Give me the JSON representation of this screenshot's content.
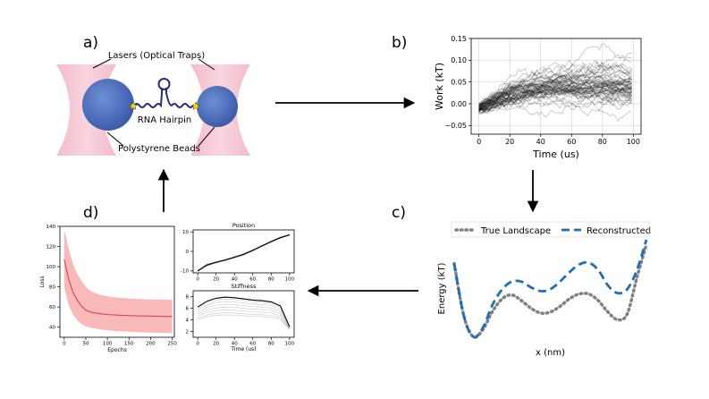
{
  "panels": {
    "a": {
      "letter": "a)",
      "lasers_label": "Lasers (Optical Traps)",
      "hairpin_label": "RNA Hairpin",
      "beads_label": "Polystyrene Beads"
    },
    "b": {
      "letter": "b)"
    },
    "c": {
      "letter": "c)"
    },
    "d": {
      "letter": "d)"
    }
  },
  "chart_data": [
    {
      "id": "work",
      "type": "line",
      "xlabel": "Time (us)",
      "ylabel": "Work (kT)",
      "xlim": [
        -5,
        105
      ],
      "ylim": [
        -0.07,
        0.15
      ],
      "xticks": [
        0,
        20,
        40,
        60,
        80,
        100
      ],
      "yticks": [
        -0.05,
        0.0,
        0.05,
        0.1,
        0.15
      ],
      "ytick_labels": [
        "−0.05",
        "0.00",
        "0.05",
        "0.10",
        "0.15"
      ],
      "grid": true,
      "n_traces": 60,
      "series": [
        {
          "x": [
            0,
            20,
            40,
            60,
            80,
            100
          ],
          "y": [
            -0.01,
            0.02,
            0.035,
            0.04,
            0.045,
            0.04
          ]
        }
      ],
      "color": "#000000"
    },
    {
      "id": "landscape",
      "type": "line",
      "xlabel": "x (nm)",
      "ylabel": "Energy (kT)",
      "legend_position": "top",
      "series": [
        {
          "name": "True Landscape",
          "style": "dotted",
          "color": "#808080",
          "x": [
            0,
            0.05,
            0.1,
            0.15,
            0.2,
            0.25,
            0.3,
            0.35,
            0.4,
            0.45,
            0.5,
            0.55,
            0.6,
            0.65,
            0.7,
            0.75,
            0.8,
            0.85,
            0.9,
            0.95,
            1.0
          ],
          "y": [
            8.5,
            3,
            0.8,
            1.6,
            3.5,
            4.8,
            5.2,
            4.6,
            3.8,
            3.3,
            3.4,
            4,
            4.8,
            5.3,
            5.3,
            4.6,
            3.4,
            2.6,
            3.2,
            7,
            10.5
          ]
        },
        {
          "name": "Reconstructed",
          "style": "dashed",
          "color": "#1f6fb4",
          "x": [
            0,
            0.05,
            0.1,
            0.15,
            0.2,
            0.25,
            0.3,
            0.35,
            0.4,
            0.45,
            0.5,
            0.55,
            0.6,
            0.65,
            0.7,
            0.75,
            0.8,
            0.85,
            0.9,
            0.95,
            1.0
          ],
          "y": [
            8.5,
            3,
            0.8,
            1.8,
            4.2,
            5.8,
            6.6,
            6.6,
            6.0,
            5.6,
            5.8,
            6.6,
            7.6,
            8.4,
            8.6,
            7.8,
            6.2,
            5.4,
            5.8,
            7.8,
            11
          ]
        }
      ]
    },
    {
      "id": "loss",
      "type": "line",
      "xlabel": "Epochs",
      "ylabel": "Loss",
      "xlim": [
        -10,
        255
      ],
      "ylim": [
        30,
        140
      ],
      "xticks": [
        0,
        50,
        100,
        150,
        200,
        250
      ],
      "yticks": [
        40,
        60,
        80,
        100,
        120,
        140
      ],
      "series": [
        {
          "name": "",
          "color": "#d63b3b",
          "x": [
            0,
            10,
            20,
            30,
            40,
            50,
            60,
            80,
            100,
            125,
            150,
            175,
            200,
            225,
            250
          ],
          "y": [
            107,
            88,
            75,
            67,
            61,
            57,
            55,
            53.5,
            52.5,
            52,
            51.5,
            51.2,
            51,
            50.8,
            50.5
          ],
          "upper": [
            137,
            118,
            103,
            93,
            86,
            80,
            76,
            72.5,
            70.5,
            69,
            68.5,
            68,
            67.5,
            67.5,
            67
          ],
          "lower": [
            80,
            62,
            53,
            47,
            43,
            41,
            39.5,
            38,
            37,
            36,
            35.5,
            35,
            34.5,
            34.5,
            34
          ]
        }
      ]
    },
    {
      "id": "position",
      "type": "line",
      "title": "Position",
      "xlim": [
        -5,
        105
      ],
      "ylim": [
        -11,
        11
      ],
      "xticks": [
        0,
        20,
        40,
        60,
        80,
        100
      ],
      "yticks": [
        -10,
        0,
        10
      ],
      "series": [
        {
          "name": "",
          "color": "#000000",
          "x": [
            0,
            10,
            20,
            30,
            40,
            50,
            60,
            70,
            80,
            90,
            100
          ],
          "y": [
            -10,
            -7,
            -5.6,
            -4.4,
            -3,
            -1.5,
            0.5,
            2.8,
            5,
            7,
            8.5
          ]
        }
      ]
    },
    {
      "id": "stiffness",
      "type": "line",
      "title": "Stiffness",
      "xlabel": "Time (us)",
      "xlim": [
        -5,
        105
      ],
      "ylim": [
        1,
        9
      ],
      "xticks": [
        0,
        20,
        40,
        60,
        80,
        100
      ],
      "yticks": [
        2,
        4,
        6,
        8
      ],
      "series": [
        {
          "name": "",
          "color": "#000000",
          "x": [
            0,
            10,
            20,
            30,
            40,
            50,
            60,
            70,
            80,
            90,
            100
          ],
          "y": [
            6.2,
            7.2,
            7.7,
            7.9,
            7.8,
            7.6,
            7.4,
            7.3,
            7.1,
            6.4,
            2.8
          ]
        }
      ]
    }
  ]
}
